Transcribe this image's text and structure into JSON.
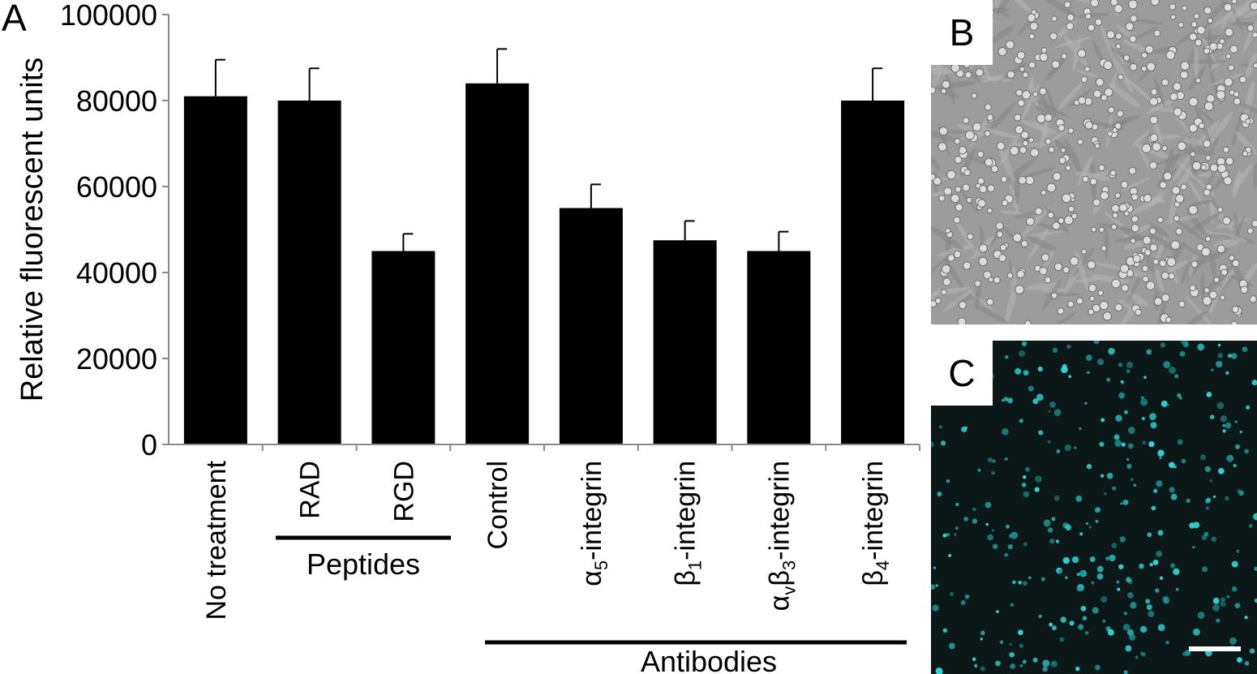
{
  "panel_a_label": "A",
  "panel_b_label": "B",
  "panel_c_label": "C",
  "chart_data": {
    "type": "bar",
    "ylabel": "Relative fluorescent units",
    "xlabel": "",
    "ylim": [
      0,
      100000
    ],
    "yticks": [
      "0",
      "20000",
      "40000",
      "60000",
      "80000",
      "100000"
    ],
    "categories": [
      {
        "main": "No treatment",
        "sub1": "",
        "mid": "",
        "sub2": "",
        "end": ""
      },
      {
        "main": "RAD",
        "sub1": "",
        "mid": "",
        "sub2": "",
        "end": ""
      },
      {
        "main": "RGD",
        "sub1": "",
        "mid": "",
        "sub2": "",
        "end": ""
      },
      {
        "main": "Control",
        "sub1": "",
        "mid": "",
        "sub2": "",
        "end": ""
      },
      {
        "main": "α",
        "sub1": "5",
        "mid": "",
        "sub2": "",
        "end": "-integrin"
      },
      {
        "main": "β",
        "sub1": "1",
        "mid": "",
        "sub2": "",
        "end": "-integrin"
      },
      {
        "main": "α",
        "sub1": "v",
        "mid": "β",
        "sub2": "3",
        "end": "-integrin"
      },
      {
        "main": "β",
        "sub1": "4",
        "mid": "",
        "sub2": "",
        "end": "-integrin"
      }
    ],
    "values": [
      81000,
      80000,
      45000,
      84000,
      55000,
      47500,
      45000,
      80000
    ],
    "errors": [
      8500,
      7500,
      4000,
      8000,
      5500,
      4500,
      4500,
      7500
    ],
    "grid": false,
    "groups": [
      {
        "label": "Peptides"
      },
      {
        "label": "Antibodies"
      }
    ]
  }
}
